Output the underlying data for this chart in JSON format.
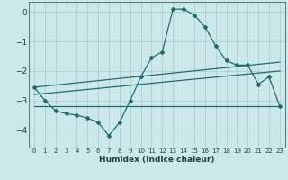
{
  "xlabel": "Humidex (Indice chaleur)",
  "bg_color": "#cce8e8",
  "grid_color": "#aacccc",
  "line_color": "#1a7070",
  "xlim": [
    -0.5,
    23.5
  ],
  "ylim": [
    -4.6,
    0.35
  ],
  "yticks": [
    0,
    -1,
    -2,
    -3,
    -4
  ],
  "xticks": [
    0,
    1,
    2,
    3,
    4,
    5,
    6,
    7,
    8,
    9,
    10,
    11,
    12,
    13,
    14,
    15,
    16,
    17,
    18,
    19,
    20,
    21,
    22,
    23
  ],
  "main_x": [
    0,
    1,
    2,
    3,
    4,
    5,
    6,
    7,
    8,
    9,
    10,
    11,
    12,
    13,
    14,
    15,
    16,
    17,
    18,
    19,
    20,
    21,
    22,
    23
  ],
  "main_y": [
    -2.55,
    -3.0,
    -3.35,
    -3.45,
    -3.5,
    -3.6,
    -3.75,
    -4.2,
    -3.75,
    -3.0,
    -2.2,
    -1.55,
    -1.35,
    0.1,
    0.1,
    -0.1,
    -0.5,
    -1.15,
    -1.65,
    -1.8,
    -1.8,
    -2.45,
    -2.2,
    -3.2
  ],
  "line1_x": [
    0,
    23
  ],
  "line1_y": [
    -2.55,
    -1.7
  ],
  "line2_x": [
    0,
    23
  ],
  "line2_y": [
    -2.8,
    -2.0
  ],
  "line3_x": [
    0,
    23
  ],
  "line3_y": [
    -3.2,
    -3.2
  ]
}
